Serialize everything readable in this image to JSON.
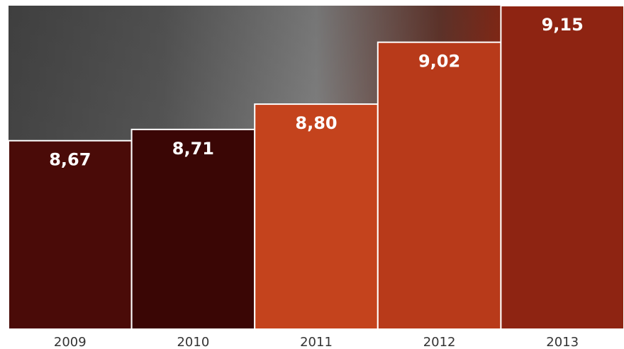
{
  "chart_data": {
    "type": "bar",
    "categories": [
      "2009",
      "2010",
      "2011",
      "2012",
      "2013"
    ],
    "values": [
      8.67,
      8.71,
      8.8,
      9.02,
      9.15
    ],
    "value_labels": [
      "8,67",
      "8,71",
      "8,80",
      "9,02",
      "9,15"
    ],
    "colors": [
      "#4a0b08",
      "#3a0605",
      "#c4431d",
      "#b83a1a",
      "#8e2412"
    ],
    "ylim": [
      8,
      9.15
    ]
  }
}
